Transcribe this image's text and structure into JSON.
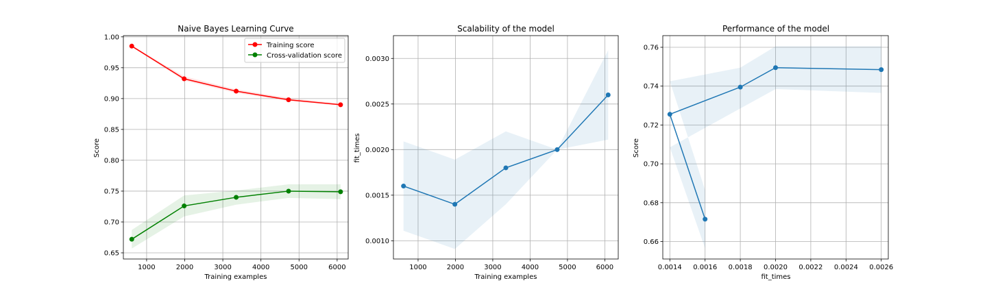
{
  "chart_data": [
    {
      "type": "line",
      "title": "Naive Bayes Learning Curve",
      "xlabel": "Training examples",
      "ylabel": "Score",
      "xlim": [
        390,
        6290
      ],
      "ylim": [
        0.64,
        1.002
      ],
      "xticks": [
        1000,
        2000,
        3000,
        4000,
        5000,
        6000
      ],
      "yticks": [
        0.65,
        0.7,
        0.75,
        0.8,
        0.85,
        0.9,
        0.95,
        1.0
      ],
      "ytick_decimals": 2,
      "grid": true,
      "legend": "top-right",
      "x": [
        610,
        1985,
        3350,
        4725,
        6090
      ],
      "series": [
        {
          "name": "Training score",
          "color": "#ff0000",
          "fill_color": "#ff0000",
          "values": [
            0.985,
            0.932,
            0.912,
            0.898,
            0.89
          ],
          "band_lower": [
            0.984,
            0.929,
            0.909,
            0.896,
            0.889
          ],
          "band_upper": [
            0.986,
            0.936,
            0.915,
            0.901,
            0.892
          ]
        },
        {
          "name": "Cross-validation score",
          "color": "#008000",
          "fill_color": "#008000",
          "values": [
            0.672,
            0.726,
            0.74,
            0.75,
            0.749
          ],
          "band_lower": [
            0.657,
            0.709,
            0.728,
            0.739,
            0.737
          ],
          "band_upper": [
            0.687,
            0.743,
            0.751,
            0.761,
            0.761
          ]
        }
      ]
    },
    {
      "type": "line",
      "title": "Scalability of the model",
      "xlabel": "Training examples",
      "ylabel": "fit_times",
      "xlim": [
        340,
        6360
      ],
      "ylim": [
        0.0008,
        0.00325
      ],
      "xticks": [
        1000,
        2000,
        3000,
        4000,
        5000,
        6000
      ],
      "yticks": [
        0.001,
        0.0015,
        0.002,
        0.0025,
        0.003
      ],
      "ytick_decimals": 4,
      "grid": true,
      "x": [
        610,
        1985,
        3350,
        4725,
        6090
      ],
      "series": [
        {
          "color": "#1f77b4",
          "fill_color": "#1f77b4",
          "values": [
            0.0016,
            0.0014,
            0.0018,
            0.002,
            0.0026
          ],
          "band_lower": [
            0.00111,
            0.00091,
            0.0014,
            0.002,
            0.00211
          ],
          "band_upper": [
            0.00209,
            0.00189,
            0.0022,
            0.002,
            0.00309
          ]
        }
      ]
    },
    {
      "type": "line",
      "title": "Performance of the model",
      "xlabel": "fit_times",
      "ylabel": "Score",
      "xlim": [
        0.00136,
        0.00264
      ],
      "ylim": [
        0.651,
        0.766
      ],
      "xticks": [
        0.0014,
        0.0016,
        0.0018,
        0.002,
        0.0022,
        0.0024,
        0.0026
      ],
      "xtick_decimals": 4,
      "yticks": [
        0.66,
        0.68,
        0.7,
        0.72,
        0.74,
        0.76
      ],
      "ytick_decimals": 2,
      "grid": true,
      "x": [
        0.0014,
        0.0016,
        0.0018,
        0.002,
        0.0026
      ],
      "line_order": [
        1,
        0,
        2,
        3,
        4
      ],
      "series": [
        {
          "color": "#1f77b4",
          "fill_color": "#1f77b4",
          "values": [
            0.7255,
            0.6715,
            0.7395,
            0.7495,
            0.7485
          ],
          "band_lower": [
            0.7085,
            0.6565,
            0.7285,
            0.7385,
            0.7365
          ],
          "band_upper": [
            0.7425,
            0.6865,
            0.7495,
            0.7605,
            0.7605
          ]
        }
      ]
    }
  ]
}
